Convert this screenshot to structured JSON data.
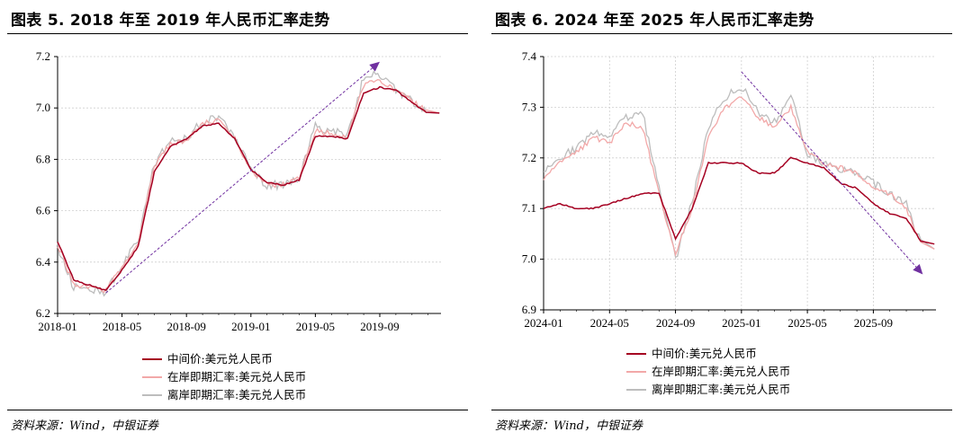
{
  "colors": {
    "midpoint": "#a50021",
    "onshore": "#f2a8a8",
    "offshore": "#bdbdbd",
    "arrow": "#7030a0"
  },
  "panels": [
    {
      "title": "图表 5. 2018 年至 2019 年人民币汇率走势",
      "source": "资料来源：Wind，中银证券",
      "chart_data": {
        "type": "line",
        "title": "图表 5. 2018 年至 2019 年人民币汇率走势",
        "x_ticks": [
          "2018-01",
          "2018-05",
          "2018-09",
          "2019-01",
          "2019-05",
          "2019-09"
        ],
        "xlim": [
          "2018-01",
          "2019-12"
        ],
        "ylim": [
          6.2,
          7.2
        ],
        "y_ticks": [
          "6.2",
          "6.4",
          "6.6",
          "6.8",
          "7.0",
          "7.2"
        ],
        "grid": "horizontal dotted",
        "legend_position": "bottom",
        "series": [
          {
            "name": "中间价:美元兑人民币",
            "x": [
              "2018-01",
              "2018-02",
              "2018-03",
              "2018-04",
              "2018-05",
              "2018-06",
              "2018-07",
              "2018-08",
              "2018-09",
              "2018-10",
              "2018-11",
              "2018-12",
              "2019-01",
              "2019-02",
              "2019-03",
              "2019-04",
              "2019-05",
              "2019-06",
              "2019-07",
              "2019-08",
              "2019-09",
              "2019-10",
              "2019-11",
              "2019-12"
            ],
            "values": [
              6.48,
              6.33,
              6.31,
              6.29,
              6.37,
              6.46,
              6.75,
              6.85,
              6.88,
              6.93,
              6.94,
              6.88,
              6.76,
              6.71,
              6.7,
              6.72,
              6.89,
              6.89,
              6.88,
              7.06,
              7.08,
              7.07,
              7.02,
              6.98
            ]
          },
          {
            "name": "在岸即期汇率:美元兑人民币",
            "x": [
              "2018-01",
              "2018-02",
              "2018-03",
              "2018-04",
              "2018-05",
              "2018-06",
              "2018-07",
              "2018-08",
              "2018-09",
              "2018-10",
              "2018-11",
              "2018-12",
              "2019-01",
              "2019-02",
              "2019-03",
              "2019-04",
              "2019-05",
              "2019-06",
              "2019-07",
              "2019-08",
              "2019-09",
              "2019-10",
              "2019-11",
              "2019-12"
            ],
            "values": [
              6.47,
              6.31,
              6.3,
              6.29,
              6.38,
              6.48,
              6.77,
              6.86,
              6.87,
              6.94,
              6.95,
              6.88,
              6.76,
              6.7,
              6.7,
              6.73,
              6.91,
              6.9,
              6.88,
              7.09,
              7.11,
              7.07,
              7.03,
              6.98
            ]
          },
          {
            "name": "离岸即期汇率:美元兑人民币",
            "x": [
              "2018-01",
              "2018-02",
              "2018-03",
              "2018-04",
              "2018-05",
              "2018-06",
              "2018-07",
              "2018-08",
              "2018-09",
              "2018-10",
              "2018-11",
              "2018-12",
              "2019-01",
              "2019-02",
              "2019-03",
              "2019-04",
              "2019-05",
              "2019-06",
              "2019-07",
              "2019-08",
              "2019-09",
              "2019-10",
              "2019-11",
              "2019-12"
            ],
            "values": [
              6.46,
              6.3,
              6.3,
              6.28,
              6.39,
              6.49,
              6.78,
              6.87,
              6.88,
              6.95,
              6.96,
              6.89,
              6.76,
              6.7,
              6.7,
              6.73,
              6.93,
              6.91,
              6.89,
              7.12,
              7.13,
              7.07,
              7.03,
              6.98
            ]
          }
        ],
        "annotations": [
          {
            "type": "arrow",
            "from": [
              "2018-04",
              6.28
            ],
            "to": [
              "2019-09",
              7.18
            ]
          }
        ]
      }
    },
    {
      "title": "图表 6. 2024 年至 2025 年人民币汇率走势",
      "source": "资料来源：Wind，中银证券",
      "chart_data": {
        "type": "line",
        "title": "图表 6. 2024 年至 2025 年人民币汇率走势",
        "x_ticks": [
          "2024-01",
          "2024-05",
          "2024-09",
          "2025-01",
          "2025-05",
          "2025-09"
        ],
        "xlim": [
          "2024-01",
          "2025-12"
        ],
        "ylim": [
          6.9,
          7.4
        ],
        "y_ticks": [
          "6.9",
          "7.0",
          "7.1",
          "7.2",
          "7.3",
          "7.4"
        ],
        "grid": "horizontal and vertical dotted",
        "legend_position": "bottom",
        "series": [
          {
            "name": "中间价:美元兑人民币",
            "x": [
              "2024-01",
              "2024-02",
              "2024-03",
              "2024-04",
              "2024-05",
              "2024-06",
              "2024-07",
              "2024-08",
              "2024-09",
              "2024-10",
              "2024-11",
              "2024-12",
              "2025-01",
              "2025-02",
              "2025-03",
              "2025-04",
              "2025-05",
              "2025-06",
              "2025-07",
              "2025-08",
              "2025-09",
              "2025-10",
              "2025-11",
              "2025-12"
            ],
            "values": [
              7.1,
              7.11,
              7.1,
              7.1,
              7.11,
              7.12,
              7.13,
              7.13,
              7.04,
              7.1,
              7.19,
              7.19,
              7.19,
              7.17,
              7.17,
              7.2,
              7.19,
              7.18,
              7.15,
              7.14,
              7.11,
              7.09,
              7.08,
              7.03
            ]
          },
          {
            "name": "在岸即期汇率:美元兑人民币",
            "x": [
              "2024-01",
              "2024-02",
              "2024-03",
              "2024-04",
              "2024-05",
              "2024-06",
              "2024-07",
              "2024-08",
              "2024-09",
              "2024-10",
              "2024-11",
              "2024-12",
              "2025-01",
              "2025-02",
              "2025-03",
              "2025-04",
              "2025-05",
              "2025-06",
              "2025-07",
              "2025-08",
              "2025-09",
              "2025-10",
              "2025-11",
              "2025-12"
            ],
            "values": [
              7.16,
              7.19,
              7.21,
              7.24,
              7.23,
              7.27,
              7.26,
              7.13,
              7.01,
              7.1,
              7.24,
              7.3,
              7.32,
              7.28,
              7.26,
              7.3,
              7.21,
              7.19,
              7.18,
              7.17,
              7.14,
              7.13,
              7.1,
              7.02
            ]
          },
          {
            "name": "离岸即期汇率:美元兑人民币",
            "x": [
              "2024-01",
              "2024-02",
              "2024-03",
              "2024-04",
              "2024-05",
              "2024-06",
              "2024-07",
              "2024-08",
              "2024-09",
              "2024-10",
              "2024-11",
              "2024-12",
              "2025-01",
              "2025-02",
              "2025-03",
              "2025-04",
              "2025-05",
              "2025-06",
              "2025-07",
              "2025-08",
              "2025-09",
              "2025-10",
              "2025-11",
              "2025-12"
            ],
            "values": [
              7.17,
              7.2,
              7.22,
              7.25,
              7.24,
              7.28,
              7.29,
              7.14,
              7.0,
              7.11,
              7.26,
              7.32,
              7.34,
              7.29,
              7.27,
              7.33,
              7.21,
              7.19,
              7.18,
              7.17,
              7.15,
              7.13,
              7.11,
              7.02
            ]
          }
        ],
        "annotations": [
          {
            "type": "arrow",
            "from": [
              "2025-01",
              7.37
            ],
            "to": [
              "2025-12",
              6.97
            ]
          }
        ]
      }
    }
  ]
}
